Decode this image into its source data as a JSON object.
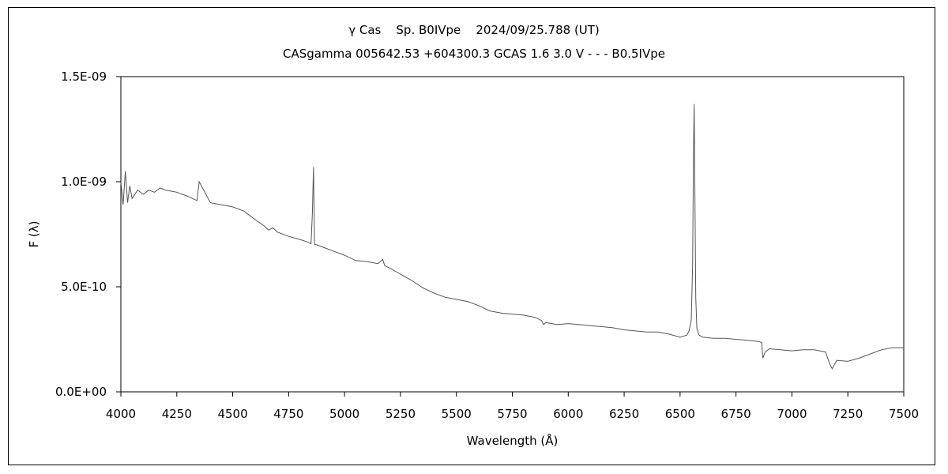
{
  "chart_data": {
    "type": "line",
    "title": "γ Cas    Sp. B0IVpe    2024/09/25.788 (UT)",
    "subtitle": "CASgamma 005642.53 +604300.3 GCAS 1.6 3.0 V - - - B0.5IVpe",
    "xlabel": "Wavelength (Å)",
    "ylabel": "F (λ)",
    "xlim": [
      4000,
      7500
    ],
    "ylim": [
      0,
      1.5e-09
    ],
    "xticks": [
      "4000",
      "4250",
      "4500",
      "4750",
      "5000",
      "5250",
      "5500",
      "5750",
      "6000",
      "6250",
      "6500",
      "6750",
      "7000",
      "7250",
      "7500"
    ],
    "yticks": [
      "0.0E+00",
      "5.0E-10",
      "1.0E-09",
      "1.5E-09"
    ],
    "ytick_values": [
      0,
      5e-10,
      1e-09,
      1.5e-09
    ],
    "grid": false,
    "series": [
      {
        "color": "#555555",
        "x": [
          4000,
          4010,
          4020,
          4030,
          4040,
          4050,
          4075,
          4100,
          4125,
          4150,
          4175,
          4200,
          4225,
          4250,
          4300,
          4340,
          4350,
          4400,
          4450,
          4500,
          4550,
          4600,
          4640,
          4660,
          4680,
          4700,
          4750,
          4800,
          4830,
          4850,
          4856,
          4861,
          4866,
          4875,
          4900,
          4950,
          5000,
          5050,
          5100,
          5150,
          5170,
          5180,
          5200,
          5250,
          5300,
          5350,
          5400,
          5450,
          5500,
          5550,
          5600,
          5650,
          5700,
          5750,
          5800,
          5850,
          5880,
          5890,
          5900,
          5950,
          6000,
          6050,
          6100,
          6150,
          6200,
          6250,
          6300,
          6350,
          6400,
          6450,
          6500,
          6530,
          6540,
          6550,
          6556,
          6560,
          6563,
          6566,
          6570,
          6575,
          6585,
          6600,
          6650,
          6700,
          6750,
          6800,
          6850,
          6865,
          6870,
          6880,
          6900,
          6950,
          7000,
          7050,
          7100,
          7150,
          7170,
          7180,
          7200,
          7250,
          7300,
          7350,
          7400,
          7450,
          7500
        ],
        "y": [
          1e-09,
          8.9e-10,
          1.05e-09,
          9e-10,
          9.8e-10,
          9.2e-10,
          9.6e-10,
          9.4e-10,
          9.6e-10,
          9.5e-10,
          9.7e-10,
          9.6e-10,
          9.55e-10,
          9.5e-10,
          9.3e-10,
          9.1e-10,
          1e-09,
          9e-10,
          8.9e-10,
          8.8e-10,
          8.6e-10,
          8.2e-10,
          7.9e-10,
          7.7e-10,
          7.8e-10,
          7.6e-10,
          7.4e-10,
          7.25e-10,
          7.15e-10,
          7.05e-10,
          8.5e-10,
          1.07e-09,
          7e-10,
          7e-10,
          6.9e-10,
          6.7e-10,
          6.5e-10,
          6.25e-10,
          6.2e-10,
          6.1e-10,
          6.3e-10,
          6e-10,
          5.9e-10,
          5.6e-10,
          5.3e-10,
          4.95e-10,
          4.7e-10,
          4.5e-10,
          4.4e-10,
          4.3e-10,
          4.1e-10,
          3.85e-10,
          3.75e-10,
          3.7e-10,
          3.65e-10,
          3.55e-10,
          3.4e-10,
          3.2e-10,
          3.3e-10,
          3.2e-10,
          3.25e-10,
          3.2e-10,
          3.15e-10,
          3.1e-10,
          3.05e-10,
          2.95e-10,
          2.9e-10,
          2.85e-10,
          2.85e-10,
          2.75e-10,
          2.6e-10,
          2.7e-10,
          2.9e-10,
          3.4e-10,
          6e-10,
          1.13e-09,
          1.37e-09,
          1e-09,
          4.5e-10,
          3e-10,
          2.7e-10,
          2.6e-10,
          2.55e-10,
          2.55e-10,
          2.5e-10,
          2.45e-10,
          2.4e-10,
          2.35e-10,
          1.6e-10,
          1.9e-10,
          2.05e-10,
          2e-10,
          1.95e-10,
          2e-10,
          2e-10,
          1.9e-10,
          1.3e-10,
          1.1e-10,
          1.5e-10,
          1.45e-10,
          1.6e-10,
          1.8e-10,
          2e-10,
          2.1e-10,
          2.1e-10
        ]
      }
    ]
  }
}
